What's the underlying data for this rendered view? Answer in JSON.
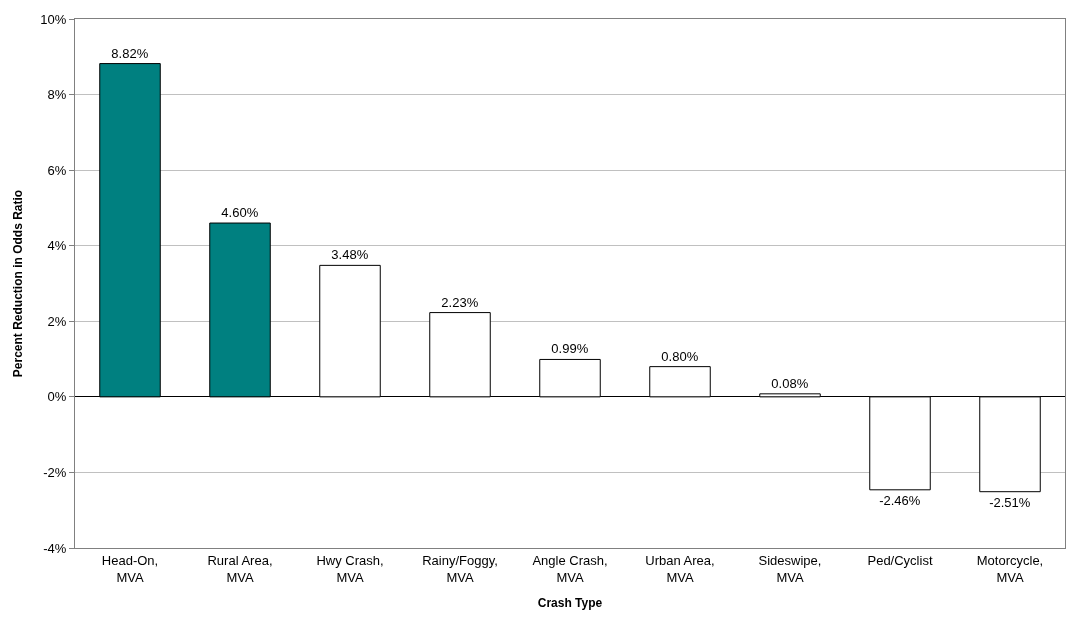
{
  "chart_data": {
    "type": "bar",
    "xlabel": "Crash Type",
    "ylabel": "Percent Reduction in Odds Ratio",
    "categories": [
      "Head-On,\nMVA",
      "Rural Area,\nMVA",
      "Hwy Crash,\nMVA",
      "Rainy/Foggy,\nMVA",
      "Angle Crash,\nMVA",
      "Urban Area,\nMVA",
      "Sideswipe,\nMVA",
      "Ped/Cyclist",
      "Motorcycle,\nMVA"
    ],
    "values": [
      8.82,
      4.6,
      3.48,
      2.23,
      0.99,
      0.8,
      0.08,
      -2.46,
      -2.51
    ],
    "colors": [
      "#008080",
      "#008080",
      "#ffffff",
      "#ffffff",
      "#ffffff",
      "#ffffff",
      "#ffffff",
      "#ffffff",
      "#ffffff"
    ],
    "value_labels": [
      "8.82%",
      "4.60%",
      "3.48%",
      "2.23%",
      "0.99%",
      "0.80%",
      "0.08%",
      "-2.46%",
      "-2.51%"
    ],
    "ylim": [
      -4,
      10
    ],
    "yticks": [
      {
        "value": -4,
        "label": "-4%"
      },
      {
        "value": -2,
        "label": "-2%"
      },
      {
        "value": 0,
        "label": "0%"
      },
      {
        "value": 2,
        "label": "2%"
      },
      {
        "value": 4,
        "label": "4%"
      },
      {
        "value": 6,
        "label": "6%"
      },
      {
        "value": 8,
        "label": "8%"
      },
      {
        "value": 10,
        "label": "10%"
      }
    ],
    "grid": "y",
    "legend": false
  }
}
